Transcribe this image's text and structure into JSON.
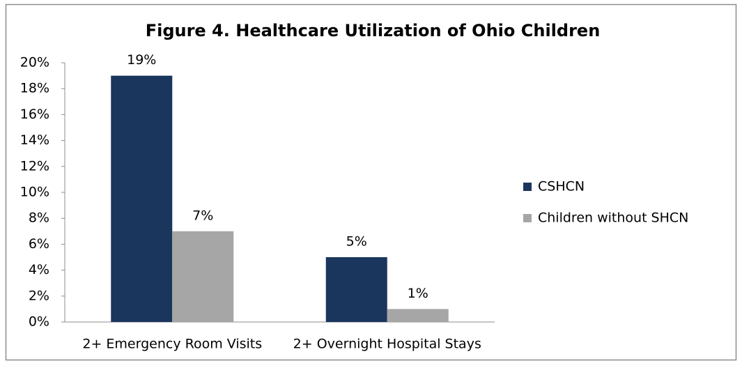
{
  "chart_data": {
    "type": "bar",
    "title": "Figure 4. Healthcare Utilization of Ohio Children",
    "categories": [
      "2+ Emergency Room Visits",
      "2+ Overnight Hospital Stays"
    ],
    "series": [
      {
        "name": "CSHCN",
        "color": "#1b365d",
        "values": [
          19,
          5
        ],
        "value_labels": [
          "19%",
          "5%"
        ]
      },
      {
        "name": "Children without SHCN",
        "color": "#a6a6a6",
        "values": [
          7,
          1
        ],
        "value_labels": [
          "7%",
          "1%"
        ]
      }
    ],
    "ylim": [
      0,
      20
    ],
    "yticks": [
      {
        "value": 0,
        "label": "0%"
      },
      {
        "value": 2,
        "label": "2%"
      },
      {
        "value": 4,
        "label": "4%"
      },
      {
        "value": 6,
        "label": "6%"
      },
      {
        "value": 8,
        "label": "8%"
      },
      {
        "value": 10,
        "label": "10%"
      },
      {
        "value": 12,
        "label": "12%"
      },
      {
        "value": 14,
        "label": "14%"
      },
      {
        "value": 16,
        "label": "16%"
      },
      {
        "value": 18,
        "label": "18%"
      },
      {
        "value": 20,
        "label": "20%"
      }
    ],
    "grid": false,
    "legend": "right"
  }
}
